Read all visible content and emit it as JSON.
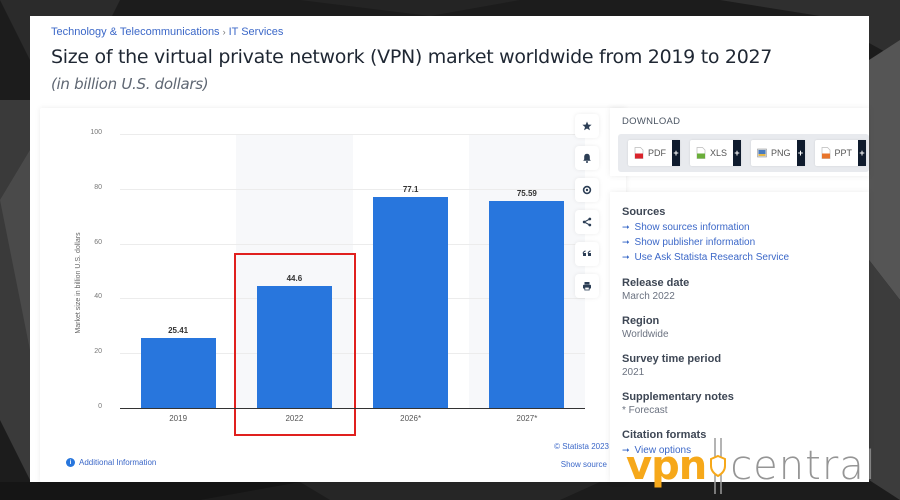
{
  "breadcrumb": {
    "items": [
      "Technology & Telecommunications",
      "IT Services"
    ],
    "separator": "›"
  },
  "header": {
    "title": "Size of the virtual private network (VPN) market worldwide from 2019 to 2027",
    "subtitle": "(in billion U.S. dollars)"
  },
  "chart_data": {
    "type": "bar",
    "title": "Size of the virtual private network (VPN) market worldwide from 2019 to 2027",
    "subtitle": "(in billion U.S. dollars)",
    "categories": [
      "2019",
      "2022",
      "2026*",
      "2027*"
    ],
    "values": [
      25.41,
      44.6,
      77.1,
      75.59
    ],
    "value_labels": [
      "25.41",
      "44.6",
      "77.1",
      "75.59"
    ],
    "xlabel": "",
    "ylabel": "Market size in billion U.S. dollars",
    "ylim": [
      0,
      100
    ],
    "yticks": [
      "0",
      "20",
      "40",
      "60",
      "80",
      "100"
    ],
    "grid": true,
    "legend": null,
    "bar_color": "#2876dd",
    "highlighted_category": "2022",
    "highlight_color": "#e0201e",
    "annotations": [
      "* Forecast"
    ]
  },
  "chart_footer": {
    "copyright": "© Statista 2023",
    "additional_info": "Additional Information",
    "show_source": "Show source"
  },
  "tools": [
    {
      "icon": "star-icon",
      "label": "Favorite"
    },
    {
      "icon": "bell-icon",
      "label": "Notifications"
    },
    {
      "icon": "gear-icon",
      "label": "Settings"
    },
    {
      "icon": "share-icon",
      "label": "Share"
    },
    {
      "icon": "quote-icon",
      "label": "Cite"
    },
    {
      "icon": "print-icon",
      "label": "Print"
    }
  ],
  "download": {
    "title": "DOWNLOAD",
    "formats": [
      {
        "label": "PDF",
        "color": "#d9232b"
      },
      {
        "label": "XLS",
        "color": "#6aae3a"
      },
      {
        "label": "PNG",
        "color": "#4a7bbd"
      },
      {
        "label": "PPT",
        "color": "#e8742a"
      }
    ],
    "plus": "+"
  },
  "info": {
    "sources": {
      "heading": "Sources",
      "links": [
        "Show sources information",
        "Show publisher information",
        "Use Ask Statista Research Service"
      ]
    },
    "release_date": {
      "heading": "Release date",
      "value": "March 2022"
    },
    "region": {
      "heading": "Region",
      "value": "Worldwide"
    },
    "survey_period": {
      "heading": "Survey time period",
      "value": "2021"
    },
    "supplementary": {
      "heading": "Supplementary notes",
      "value": "* Forecast"
    },
    "citation": {
      "heading": "Citation formats",
      "link": "View options"
    }
  },
  "watermark": {
    "part1": "vpn",
    "part2": "central",
    "colors": {
      "vpn": "#f6a81a",
      "central": "#8a8a8a"
    }
  }
}
